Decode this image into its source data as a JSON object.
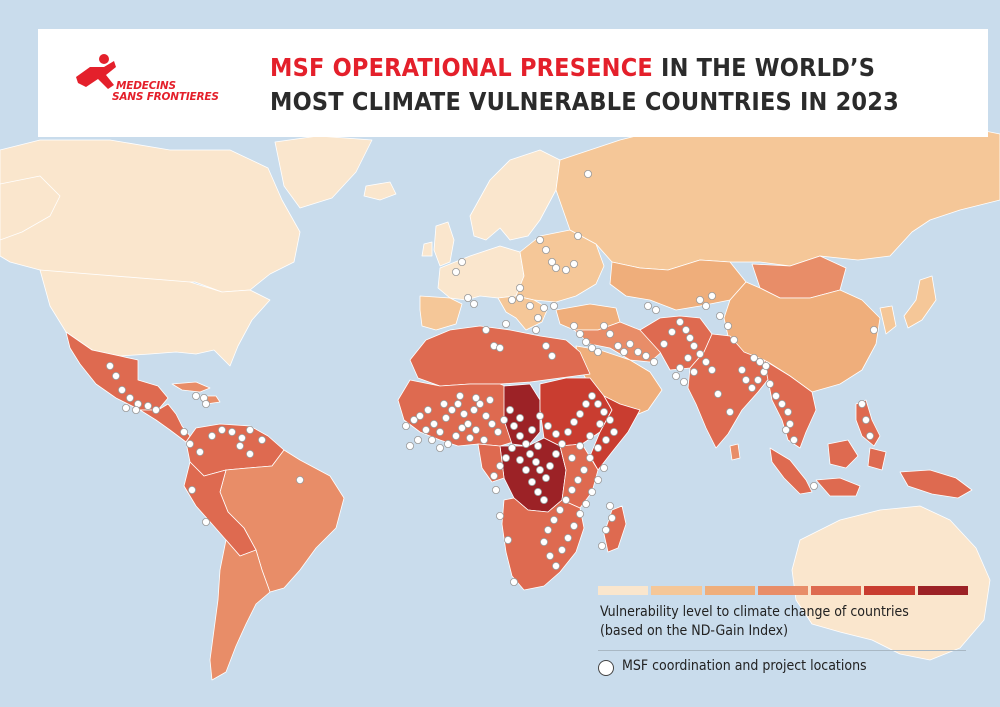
{
  "header": {
    "logo_line1": "MEDECINS",
    "logo_line2": "SANS FRONTIERES",
    "title_highlight": "MSF OPERATIONAL PRESENCE",
    "title_rest_line1": " IN THE WORLD’S",
    "title_line2": "MOST CLIMATE VULNERABLE COUNTRIES IN 2023"
  },
  "colors": {
    "ocean": "#c9dcec",
    "brand_red": "#e4202b",
    "scale": [
      "#fae6cd",
      "#f5c798",
      "#efae7b",
      "#e88d68",
      "#de6a50",
      "#c93d30",
      "#9c2226"
    ]
  },
  "legend": {
    "vulnerability_line1": "Vulnerability level to climate change of countries",
    "vulnerability_line2": "(based on the ND-Gain Index)",
    "site_label": "MSF coordination and project locations"
  }
}
